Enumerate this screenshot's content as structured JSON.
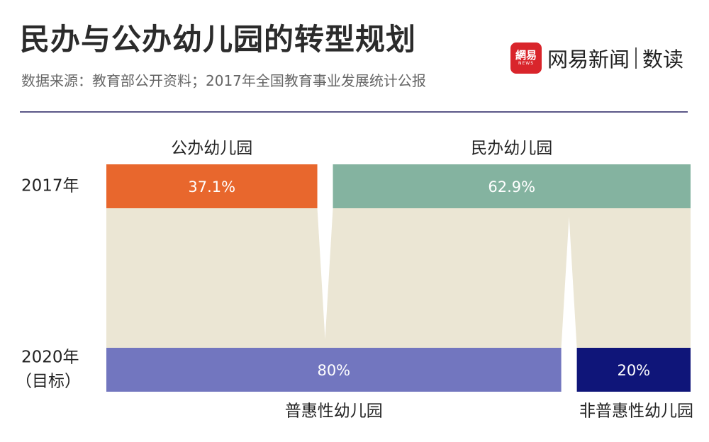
{
  "title": "民办与公办幼儿园的转型规划",
  "subtitle": "数据来源：教育部公开资料；2017年全国教育事业发展统计公报",
  "logo": {
    "mark_cn": "網易",
    "mark_en": "NEWS",
    "brand": "网易新闻",
    "column": "数读"
  },
  "colors": {
    "public_2017": "#e8672d",
    "private_2017": "#84b3a0",
    "flow": "#ebe6d4",
    "inclusive_2020": "#7276bf",
    "non_inclusive_2020": "#0f1579",
    "divider": "#5b5788",
    "brand_red": "#d9252b"
  },
  "chart_data": {
    "type": "bar",
    "stacked_percent": true,
    "rows": [
      "2017年",
      "2020年（目标）"
    ],
    "top": {
      "label": "2017年",
      "segments": [
        {
          "name": "公办幼儿园",
          "value": 37.1,
          "label": "37.1%"
        },
        {
          "name": "民办幼儿园",
          "value": 62.9,
          "label": "62.9%"
        }
      ]
    },
    "bottom": {
      "label_line1": "2020年",
      "label_line2": "（目标）",
      "segments": [
        {
          "name": "普惠性幼儿园",
          "value": 80,
          "label": "80%"
        },
        {
          "name": "非普惠性幼儿园",
          "value": 20,
          "label": "20%"
        }
      ]
    }
  }
}
